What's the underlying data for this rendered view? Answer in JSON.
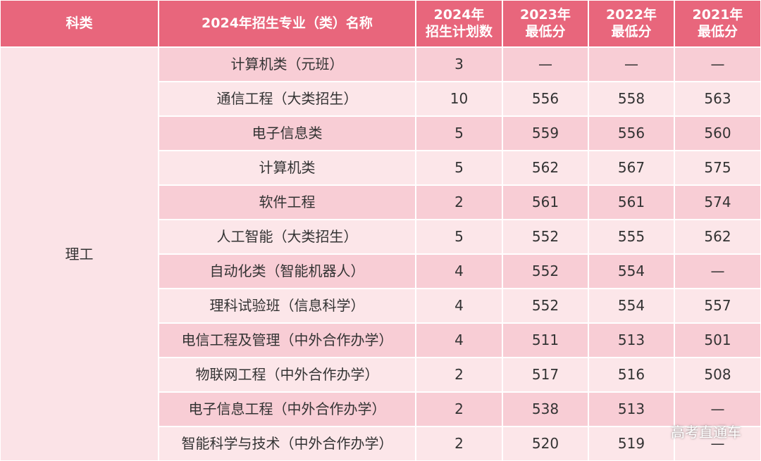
{
  "table": {
    "category": "理工",
    "header": {
      "col0": "科类",
      "col1": "2024年招生专业（类）名称",
      "col2": [
        "2024年",
        "招生计划数"
      ],
      "col3": [
        "2023年",
        "最低分"
      ],
      "col4": [
        "2022年",
        "最低分"
      ],
      "col5": [
        "2021年",
        "最低分"
      ]
    },
    "rows": [
      [
        "计算机类（元班）",
        "3",
        "—",
        "—",
        "—"
      ],
      [
        "通信工程（大类招生）",
        "10",
        "556",
        "558",
        "563"
      ],
      [
        "电子信息类",
        "5",
        "559",
        "556",
        "560"
      ],
      [
        "计算机类",
        "5",
        "562",
        "567",
        "575"
      ],
      [
        "软件工程",
        "2",
        "561",
        "561",
        "574"
      ],
      [
        "人工智能（大类招生）",
        "5",
        "552",
        "555",
        "562"
      ],
      [
        "自动化类（智能机器人）",
        "4",
        "552",
        "554",
        "—"
      ],
      [
        "理科试验班（信息科学）",
        "4",
        "552",
        "554",
        "557"
      ],
      [
        "电信工程及管理（中外合作办学）",
        "4",
        "511",
        "513",
        "501"
      ],
      [
        "物联网工程（中外合作办学）",
        "2",
        "517",
        "516",
        "508"
      ],
      [
        "电子信息工程（中外合作办学）",
        "2",
        "538",
        "513",
        "—"
      ],
      [
        "智能科学与技术（中外合作办学）",
        "2",
        "520",
        "519",
        "—"
      ]
    ]
  },
  "watermark": "高考直通车"
}
